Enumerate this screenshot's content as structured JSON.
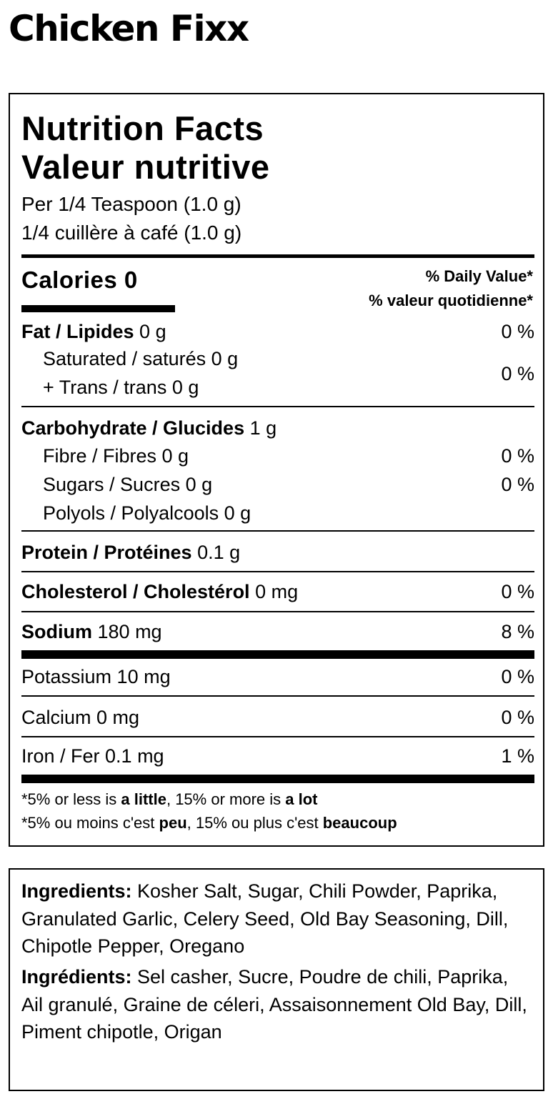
{
  "product_name": "Chicken Fixx",
  "nutrition": {
    "heading_en": "Nutrition Facts",
    "heading_fr": "Valeur nutritive",
    "serving_en": "Per 1/4 Teaspoon (1.0 g)",
    "serving_fr": "1/4 cuillère à café (1.0 g)",
    "calories_label": "Calories 0",
    "dv_en": "% Daily Value*",
    "dv_fr": "% valeur quotidienne*",
    "fat": {
      "label": "Fat / Lipides",
      "amount": "0 g",
      "dv": "0 %"
    },
    "saturated": {
      "label": "Saturated / saturés 0 g"
    },
    "trans": {
      "label": "+ Trans / trans 0 g",
      "dv": "0 %"
    },
    "carb": {
      "label": "Carbohydrate / Glucides",
      "amount": "1 g"
    },
    "fibre": {
      "label": "Fibre / Fibres 0 g",
      "dv": "0 %"
    },
    "sugars": {
      "label": "Sugars / Sucres 0 g",
      "dv": "0 %"
    },
    "polyols": {
      "label": "Polyols / Polyalcools 0 g"
    },
    "protein": {
      "label": "Protein / Protéines",
      "amount": "0.1 g"
    },
    "cholesterol": {
      "label": "Cholesterol / Cholestérol",
      "amount": "0 mg",
      "dv": "0 %"
    },
    "sodium": {
      "label": "Sodium",
      "amount": "180 mg",
      "dv": "8 %"
    },
    "potassium": {
      "label": "Potassium 10 mg",
      "dv": "0 %"
    },
    "calcium": {
      "label": "Calcium 0 mg",
      "dv": "0 %"
    },
    "iron": {
      "label": "Iron / Fer 0.1 mg",
      "dv": "1 %"
    },
    "footnote_en": {
      "a": "*5% or less is ",
      "b": "a little",
      "c": ", 15% or more is ",
      "d": "a lot"
    },
    "footnote_fr": {
      "a": "*5% ou moins c'est ",
      "b": "peu",
      "c": ", 15% ou plus c'est ",
      "d": "beaucoup"
    }
  },
  "ingredients": {
    "en_label": "Ingredients:",
    "en_text": " Kosher Salt, Sugar, Chili Powder, Paprika, Granulated Garlic, Celery Seed, Old Bay Seasoning, Dill, Chipotle Pepper, Oregano",
    "fr_label": "Ingrédients:",
    "fr_text": " Sel casher, Sucre, Poudre de chili, Paprika, Ail granulé, Graine de céleri, Assaisonnement Old Bay, Dill, Piment chipotle, Origan"
  }
}
